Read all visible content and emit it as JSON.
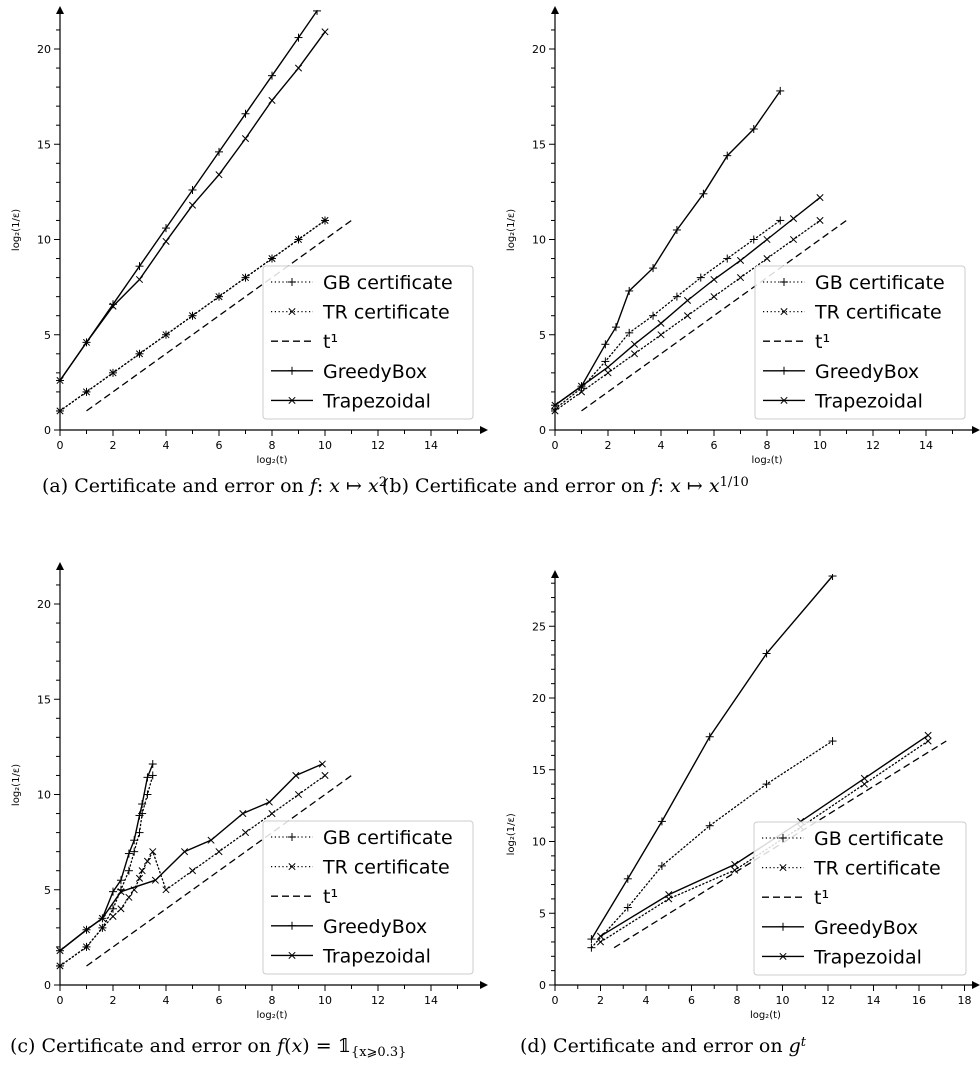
{
  "chart_data": [
    {
      "type": "line",
      "caption": "(a) Certificate and error on f: x ↦ x²",
      "xlabel": "log₂(t)",
      "ylabel": "log₂(1/ε)",
      "xlim": [
        0,
        16
      ],
      "ylim": [
        0,
        22
      ],
      "xticks": [
        0,
        2,
        4,
        6,
        8,
        10,
        12,
        14
      ],
      "yticks": [
        0,
        5,
        10,
        15,
        20
      ],
      "legend_position": "lower-right",
      "series": [
        {
          "name": "GB certificate",
          "style": "dotted",
          "marker": "plus",
          "x": [
            0,
            1,
            2,
            3,
            4,
            5,
            6,
            7,
            8,
            9,
            10
          ],
          "y": [
            1,
            2,
            3,
            4,
            5,
            6,
            7,
            8,
            9,
            10,
            11
          ]
        },
        {
          "name": "TR certificate",
          "style": "dotted",
          "marker": "x",
          "x": [
            0,
            1,
            2,
            3,
            4,
            5,
            6,
            7,
            8,
            9,
            10
          ],
          "y": [
            1,
            2,
            3,
            4,
            5,
            6,
            7,
            8,
            9,
            10,
            11
          ]
        },
        {
          "name": "t¹",
          "style": "dashed",
          "marker": "none",
          "x": [
            1,
            11
          ],
          "y": [
            1,
            11
          ]
        },
        {
          "name": "GreedyBox",
          "style": "solid",
          "marker": "plus",
          "x": [
            0,
            1,
            2,
            3,
            4,
            5,
            6,
            7,
            8,
            9,
            9.7
          ],
          "y": [
            2.6,
            4.6,
            6.6,
            8.6,
            10.6,
            12.6,
            14.6,
            16.6,
            18.6,
            20.6,
            22.0
          ]
        },
        {
          "name": "Trapezoidal",
          "style": "solid",
          "marker": "x",
          "x": [
            0,
            1,
            2,
            3,
            4,
            5,
            6,
            7,
            8,
            9,
            10
          ],
          "y": [
            2.6,
            4.6,
            6.5,
            7.9,
            9.9,
            11.8,
            13.4,
            15.3,
            17.3,
            19.0,
            20.9
          ]
        }
      ]
    },
    {
      "type": "line",
      "caption": "(b) Certificate and error on f: x ↦ x^{1/10}",
      "xlabel": "log₂(t)",
      "ylabel": "log₂(1/ε)",
      "xlim": [
        0,
        16
      ],
      "ylim": [
        0,
        22
      ],
      "xticks": [
        0,
        2,
        4,
        6,
        8,
        10,
        12,
        14
      ],
      "yticks": [
        0,
        5,
        10,
        15,
        20
      ],
      "legend_position": "lower-right",
      "series": [
        {
          "name": "GB certificate",
          "style": "dotted",
          "marker": "plus",
          "x": [
            0,
            1,
            1.9,
            2.8,
            3.7,
            4.6,
            5.5,
            6.5,
            7.5,
            8.5
          ],
          "y": [
            1.1,
            2.2,
            3.6,
            5.1,
            6.0,
            7.0,
            8.0,
            9.0,
            10.0,
            11.0
          ]
        },
        {
          "name": "TR certificate",
          "style": "dotted",
          "marker": "x",
          "x": [
            0,
            1,
            2,
            3,
            4,
            5,
            6,
            7,
            8,
            9,
            10
          ],
          "y": [
            1,
            2,
            3,
            4,
            5,
            6,
            7,
            8,
            9,
            10,
            11
          ]
        },
        {
          "name": "t¹",
          "style": "dashed",
          "marker": "none",
          "x": [
            1,
            11
          ],
          "y": [
            1,
            11
          ]
        },
        {
          "name": "GreedyBox",
          "style": "solid",
          "marker": "plus",
          "x": [
            0,
            1,
            1.9,
            2.3,
            2.8,
            3.7,
            4.6,
            5.6,
            6.5,
            7.5,
            8.5
          ],
          "y": [
            1.3,
            2.3,
            4.5,
            5.4,
            7.3,
            8.5,
            10.5,
            12.4,
            14.4,
            15.8,
            17.8
          ]
        },
        {
          "name": "Trapezoidal",
          "style": "solid",
          "marker": "x",
          "x": [
            0,
            1,
            2,
            3,
            4,
            5,
            6,
            7,
            8,
            9,
            10
          ],
          "y": [
            1.3,
            2.3,
            3.3,
            4.5,
            5.6,
            6.8,
            7.9,
            8.9,
            10.0,
            11.1,
            12.2
          ]
        }
      ]
    },
    {
      "type": "line",
      "caption": "(c) Certificate and error on f(x) = 𝟙{x⩾0.3}",
      "xlabel": "log₂(t)",
      "ylabel": "log₂(1/ε)",
      "xlim": [
        0,
        16
      ],
      "ylim": [
        0,
        22
      ],
      "xticks": [
        0,
        2,
        4,
        6,
        8,
        10,
        12,
        14
      ],
      "yticks": [
        0,
        5,
        10,
        15,
        20
      ],
      "legend_position": "lower-right",
      "series": [
        {
          "name": "GB certificate",
          "style": "dotted",
          "marker": "plus",
          "x": [
            0,
            1,
            1.6,
            2.0,
            2.3,
            2.6,
            2.8,
            3.0,
            3.1,
            3.3,
            3.5
          ],
          "y": [
            1.0,
            2.0,
            3.0,
            4.0,
            5.0,
            6.0,
            7.0,
            8.0,
            9.0,
            10.0,
            11.0
          ]
        },
        {
          "name": "TR certificate",
          "style": "dotted",
          "marker": "x",
          "x": [
            0,
            1,
            1.6,
            2.0,
            2.3,
            2.6,
            2.8,
            3.0,
            3.1,
            3.3,
            3.5,
            4.0,
            5.0,
            6.0,
            7.0,
            8.0,
            9.0,
            10.0
          ],
          "y": [
            1.0,
            2.0,
            3.0,
            3.6,
            4.0,
            4.6,
            5.0,
            5.6,
            6.0,
            6.5,
            7.0,
            5.0,
            6.0,
            7.0,
            8.0,
            9.0,
            10.0,
            11.0
          ]
        },
        {
          "name": "t¹",
          "style": "dashed",
          "marker": "none",
          "x": [
            1,
            11
          ],
          "y": [
            1,
            11
          ]
        },
        {
          "name": "GreedyBox",
          "style": "solid",
          "marker": "plus",
          "x": [
            0,
            1,
            1.6,
            2.0,
            2.3,
            2.6,
            2.8,
            3.0,
            3.1,
            3.3,
            3.5
          ],
          "y": [
            1.8,
            2.9,
            3.5,
            4.9,
            5.5,
            6.9,
            7.6,
            8.9,
            9.5,
            10.9,
            11.6
          ]
        },
        {
          "name": "Trapezoidal",
          "style": "solid",
          "marker": "x",
          "x": [
            0,
            1,
            1.6,
            2.3,
            3.6,
            4.7,
            5.7,
            6.9,
            7.9,
            8.9,
            9.9
          ],
          "y": [
            1.8,
            2.9,
            3.5,
            4.9,
            5.5,
            7.0,
            7.6,
            9.0,
            9.6,
            11.0,
            11.6
          ]
        }
      ]
    },
    {
      "type": "line",
      "caption": "(d) Certificate and error on g^t",
      "xlabel": "log₂(t)",
      "ylabel": "log₂(1/ε)",
      "xlim": [
        0,
        18.5
      ],
      "ylim": [
        0,
        29
      ],
      "xticks": [
        0,
        2,
        4,
        6,
        8,
        10,
        12,
        14,
        16,
        18
      ],
      "yticks": [
        0,
        5,
        10,
        15,
        20,
        25
      ],
      "legend_position": "lower-right",
      "series": [
        {
          "name": "GB certificate",
          "style": "dotted",
          "marker": "plus",
          "x": [
            1.6,
            3.2,
            4.7,
            6.8,
            9.3,
            12.2
          ],
          "y": [
            2.6,
            5.4,
            8.3,
            11.1,
            14.0,
            17.0
          ]
        },
        {
          "name": "TR certificate",
          "style": "dotted",
          "marker": "x",
          "x": [
            2.0,
            5.0,
            7.9,
            10.8,
            13.6,
            16.4
          ],
          "y": [
            3.0,
            6.0,
            8.0,
            11.0,
            14.0,
            17.0
          ]
        },
        {
          "name": "t¹",
          "style": "dashed",
          "marker": "none",
          "x": [
            2.6,
            17.2
          ],
          "y": [
            2.6,
            17.0
          ]
        },
        {
          "name": "GreedyBox",
          "style": "solid",
          "marker": "plus",
          "x": [
            1.6,
            3.2,
            4.7,
            6.8,
            9.3,
            12.2
          ],
          "y": [
            3.2,
            7.4,
            11.4,
            17.3,
            23.1,
            28.5
          ]
        },
        {
          "name": "Trapezoidal",
          "style": "solid",
          "marker": "x",
          "x": [
            2.0,
            5.0,
            7.9,
            10.8,
            13.6,
            16.4
          ],
          "y": [
            3.4,
            6.3,
            8.4,
            11.4,
            14.4,
            17.4
          ]
        }
      ]
    }
  ]
}
